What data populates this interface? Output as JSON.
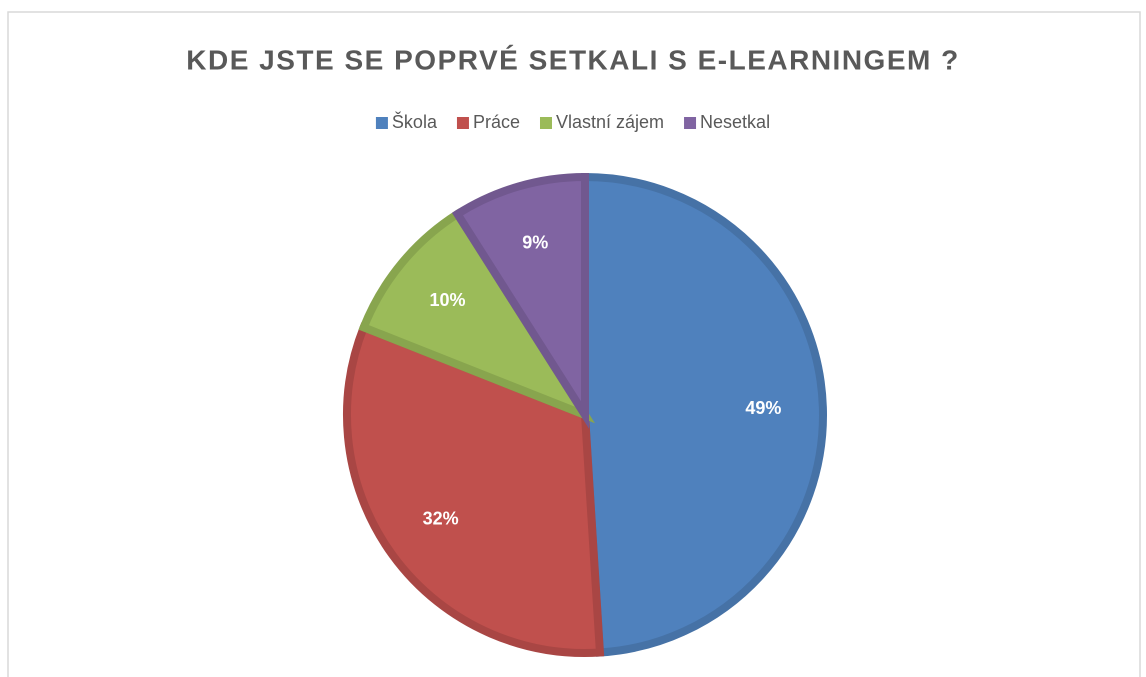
{
  "chart_data": {
    "type": "pie",
    "title": "KDE JSTE SE POPRVÉ SETKALI S E-LEARNINGEM ?",
    "categories": [
      "Škola",
      "Práce",
      "Vlastní zájem",
      "Nesetkal"
    ],
    "values": [
      49,
      32,
      10,
      9
    ],
    "value_labels": [
      "49%",
      "32%",
      "10%",
      "9%"
    ],
    "colors": [
      "#4f81bd",
      "#c0504d",
      "#9bbb59",
      "#8064a2"
    ],
    "legend": "top"
  }
}
